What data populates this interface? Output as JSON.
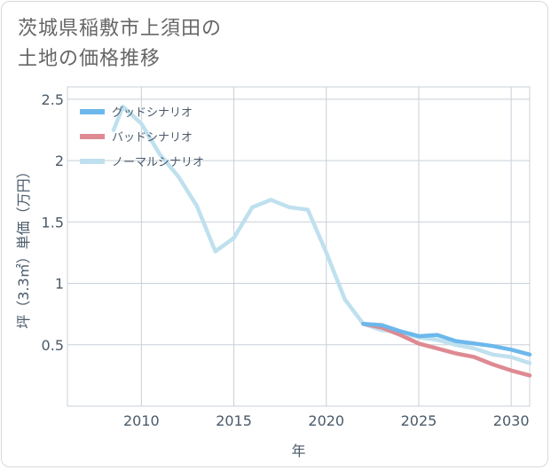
{
  "title_line1": "茨城県稲敷市上須田の",
  "title_line2": "土地の価格推移",
  "chart_data": {
    "type": "line",
    "title": "茨城県稲敷市上須田の土地の価格推移",
    "xlabel": "年",
    "ylabel": "坪（3.3㎡）単価（万円）",
    "xlim": [
      2006,
      2031
    ],
    "ylim": [
      0.0,
      2.6
    ],
    "xticks": [
      2010,
      2015,
      2020,
      2025,
      2030
    ],
    "xtick_labels": [
      "2010",
      "2015",
      "2020",
      "2025",
      "2030"
    ],
    "yticks": [
      0.5,
      1,
      1.5,
      2,
      2.5
    ],
    "ytick_labels": [
      "0.5",
      "1",
      "1.5",
      "2",
      "2.5"
    ],
    "grid": true,
    "legend_position": "top-left",
    "series": [
      {
        "name": "グッドシナリオ",
        "color": "#6cb8ec",
        "x": [
          2022,
          2023,
          2024,
          2025,
          2026,
          2027,
          2028,
          2029,
          2030,
          2031
        ],
        "y": [
          0.67,
          0.66,
          0.61,
          0.57,
          0.58,
          0.53,
          0.51,
          0.49,
          0.46,
          0.42
        ]
      },
      {
        "name": "バッドシナリオ",
        "color": "#de8a92",
        "x": [
          2022,
          2023,
          2024,
          2025,
          2026,
          2027,
          2028,
          2029,
          2030,
          2031
        ],
        "y": [
          0.67,
          0.64,
          0.58,
          0.51,
          0.47,
          0.43,
          0.4,
          0.34,
          0.29,
          0.25
        ]
      },
      {
        "name": "ノーマルシナリオ",
        "color": "#bfe0ee",
        "x": [
          2008.5,
          2009,
          2010,
          2011,
          2012,
          2013,
          2014,
          2015,
          2016,
          2017,
          2018,
          2019,
          2020,
          2021,
          2022,
          2023,
          2024,
          2025,
          2026,
          2027,
          2028,
          2029,
          2030,
          2031
        ],
        "y": [
          2.25,
          2.44,
          2.3,
          2.05,
          1.87,
          1.63,
          1.26,
          1.37,
          1.62,
          1.68,
          1.62,
          1.6,
          1.25,
          0.87,
          0.67,
          0.62,
          0.6,
          0.56,
          0.54,
          0.5,
          0.47,
          0.42,
          0.4,
          0.35
        ]
      }
    ]
  }
}
